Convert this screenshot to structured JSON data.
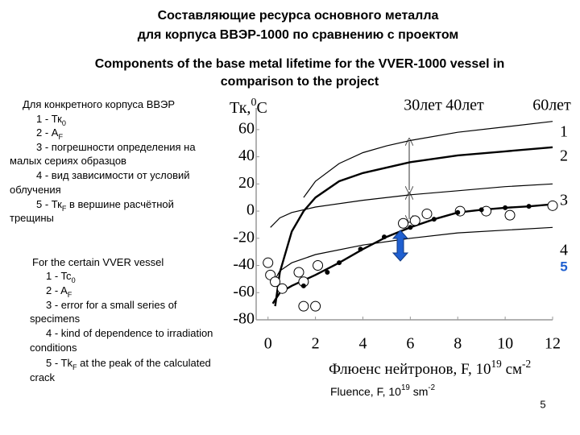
{
  "title_ru": [
    "Составляющие ресурса основного металла",
    "для корпуса ВВЭР-1000 по сравнению с проектом"
  ],
  "title_en": [
    "Components of the base metal lifetime for the VVER-1000 vessel in",
    "comparison to the project"
  ],
  "notes_ru": [
    [
      "Для конкретного корпуса ВВЭР"
    ],
    [
      "1 - Тк",
      "0"
    ],
    [
      "2 - А",
      "F"
    ],
    [
      "3 - погрешности определения на"
    ],
    [
      "малых сериях образцов"
    ],
    [
      "4 - вид зависимости от условий"
    ],
    [
      "облучения"
    ],
    [
      "5 - Тк",
      "F",
      " в вершине расчётной"
    ],
    [
      "трещины"
    ]
  ],
  "notes_en": [
    [
      "For  the certain VVER vessel"
    ],
    [
      "1 - Tc",
      "0"
    ],
    [
      "2 - A",
      "F"
    ],
    [
      "3 - error for a small series of"
    ],
    [
      "specimens"
    ],
    [
      "4 - kind of dependence to irradiation"
    ],
    [
      "conditions"
    ],
    [
      "5 - Tk",
      "F",
      " at the peak of the calculated"
    ],
    [
      "crack"
    ]
  ],
  "page_number": "5",
  "chart_data": {
    "type": "line",
    "y_label": [
      "Тк,",
      "0",
      "С"
    ],
    "x_label": [
      "Флюенс нейтронов, F, 10",
      "19",
      " см",
      "-2"
    ],
    "x_label_en": [
      "Fluence, F, 10",
      "19",
      " sm",
      "-2"
    ],
    "annotations": [
      "30лет",
      "40лет",
      "60лет"
    ],
    "curve_labels": [
      "1",
      "2",
      "3",
      "4",
      "5"
    ],
    "highlight_color": "#1f5fd0",
    "xlim": [
      -0.5,
      12
    ],
    "ylim": [
      -80,
      70
    ],
    "xticks": [
      0,
      2,
      4,
      6,
      8,
      10,
      12
    ],
    "yticks": [
      -80,
      -60,
      -40,
      -20,
      0,
      20,
      40,
      60
    ],
    "grid": false,
    "series": [
      {
        "type": "line",
        "style": "thin",
        "color": "#000000",
        "x": [
          1.5,
          2,
          3,
          4,
          5,
          6,
          8,
          10,
          12
        ],
        "values": [
          10,
          22,
          35,
          43,
          48,
          52,
          58,
          62,
          66
        ]
      },
      {
        "type": "line",
        "style": "thick",
        "color": "#000000",
        "x": [
          0.3,
          0.5,
          1,
          1.5,
          2,
          3,
          4,
          6,
          8,
          10,
          12
        ],
        "values": [
          -70,
          -45,
          -15,
          0,
          10,
          22,
          28,
          36,
          41,
          44,
          47
        ]
      },
      {
        "type": "line",
        "style": "thin",
        "color": "#000000",
        "x": [
          0.1,
          0.5,
          1,
          2,
          4,
          6,
          8,
          10,
          12
        ],
        "values": [
          -12,
          -5,
          -1,
          3,
          8,
          12,
          15,
          18,
          20
        ]
      },
      {
        "type": "line",
        "style": "thick",
        "color": "#000000",
        "x": [
          0.2,
          0.5,
          1,
          2,
          3,
          4,
          5,
          6,
          7,
          8,
          9,
          10,
          11,
          12
        ],
        "values": [
          -68,
          -60,
          -55,
          -47,
          -38,
          -28,
          -19,
          -12,
          -6,
          -1,
          1,
          2.5,
          3.5,
          5
        ]
      },
      {
        "type": "line",
        "style": "thin",
        "color": "#000000",
        "x": [
          0.3,
          0.5,
          1,
          2,
          4,
          6,
          8,
          10,
          12
        ],
        "values": [
          -50,
          -44,
          -38,
          -32,
          -25,
          -20,
          -16,
          -14,
          -12
        ]
      },
      {
        "type": "scatter",
        "marker": "large",
        "color": "#000000",
        "x": [
          0,
          0.1,
          0.3,
          0.6,
          1.3,
          1.5,
          1.5,
          2.0,
          2.1,
          5.7,
          6.2,
          6.7,
          8.1,
          9.2,
          10.2,
          12
        ],
        "values": [
          -38,
          -47,
          -52,
          -57,
          -45,
          -52,
          -70,
          -70,
          -40,
          -9,
          -7,
          -2,
          0,
          0,
          -3,
          4
        ]
      },
      {
        "type": "scatter",
        "marker": "small",
        "color": "#000000",
        "x": [
          1.5,
          2.5,
          3.0,
          3.9,
          4.9,
          6,
          7,
          8,
          9,
          10,
          11
        ],
        "values": [
          -55,
          -45,
          -38,
          -28,
          -19,
          -12,
          -6,
          -1,
          1,
          2.5,
          3.5
        ]
      }
    ]
  }
}
